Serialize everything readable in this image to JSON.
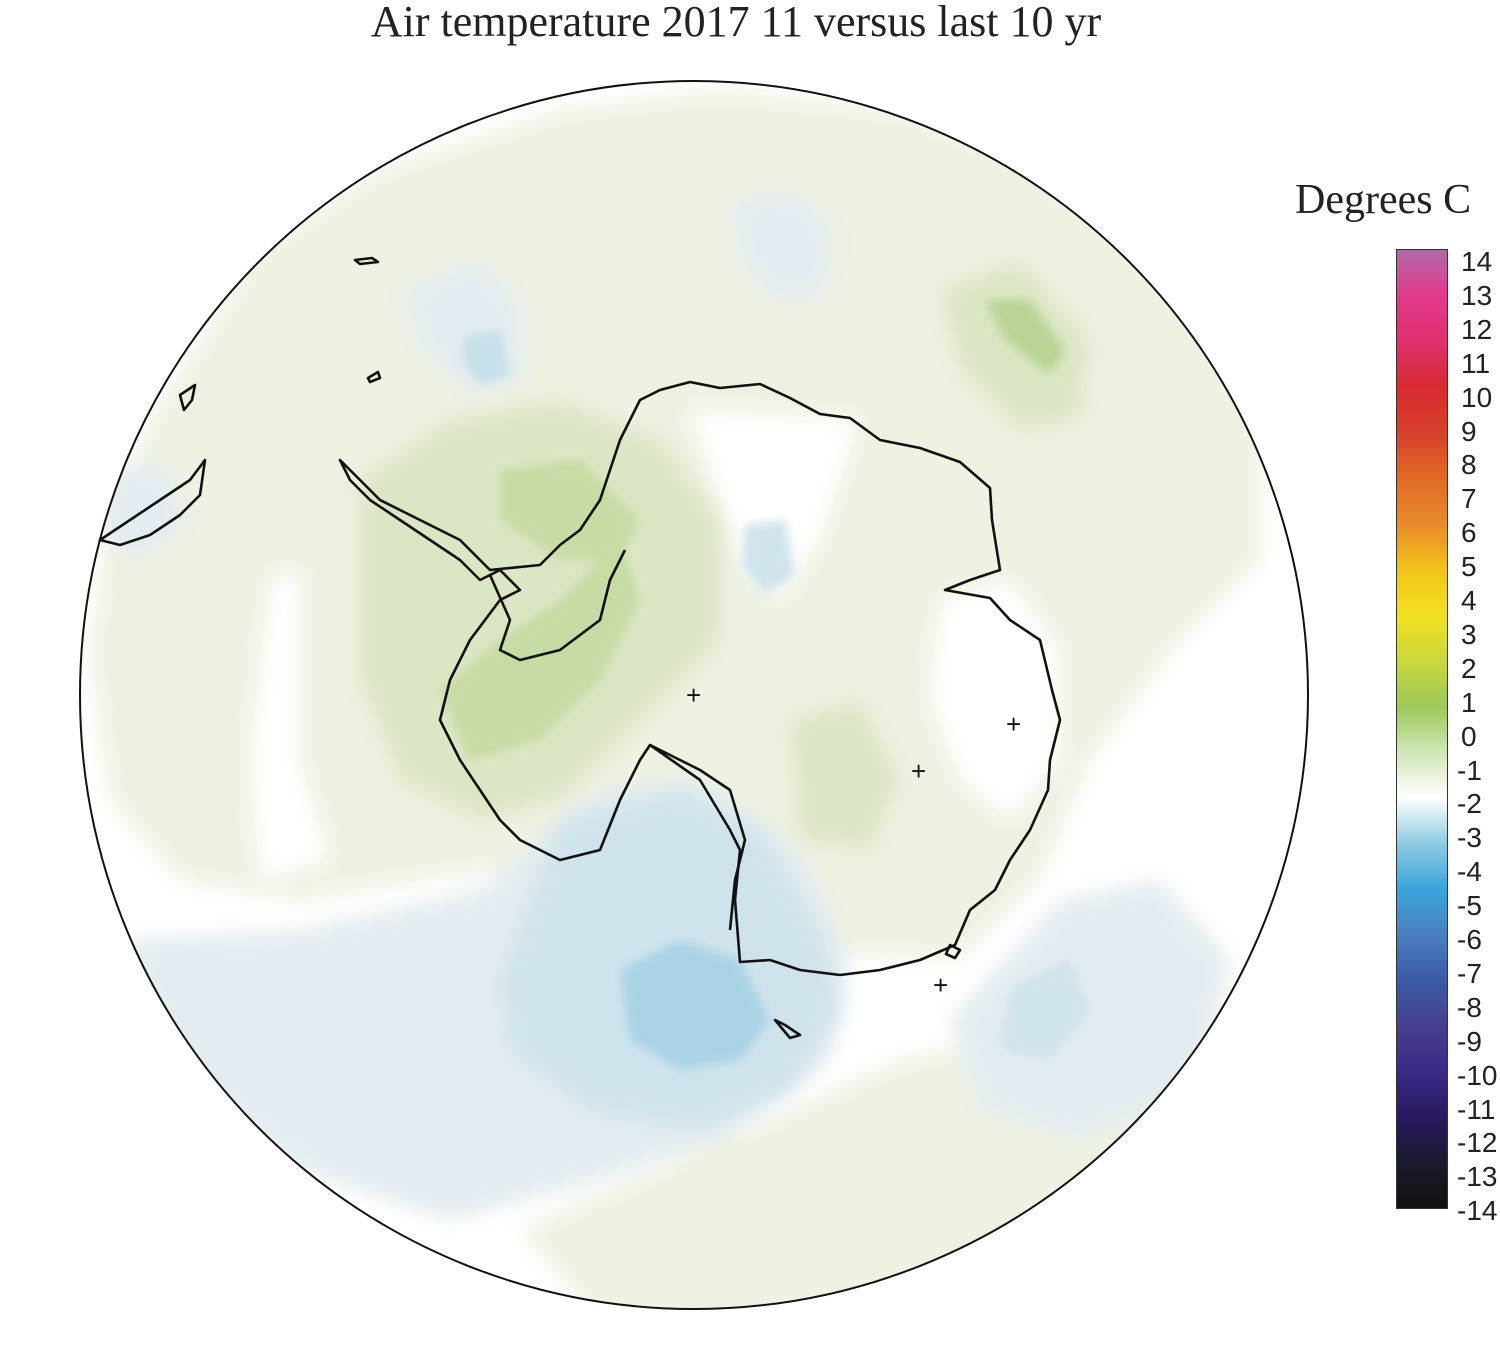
{
  "title": "Air temperature 2017 11 versus last 10 yr",
  "legend": {
    "title": "Degrees C",
    "ticks": [
      "14",
      "13",
      "12",
      "11",
      "10",
      "9",
      "8",
      "7",
      "6",
      "5",
      "4",
      "3",
      "2",
      "1",
      "0",
      "-1",
      "-2",
      "-3",
      "-4",
      "-5",
      "-6",
      "-7",
      "-8",
      "-9",
      "-10",
      "-11",
      "-12",
      "-13",
      "-14"
    ],
    "range": [
      -14,
      14
    ],
    "colors": [
      "#111111",
      "#1a1a2e",
      "#2a1860",
      "#3b2a88",
      "#46408f",
      "#3b5aa6",
      "#4a7fc0",
      "#3aa6dc",
      "#8fcbe2",
      "#ffffff",
      "#cfe6b6",
      "#9cc85a",
      "#c9d83a",
      "#f3e020",
      "#f2c318",
      "#e98a2a",
      "#e06a26",
      "#d7402a",
      "#d82a30",
      "#df2f6e",
      "#e23a8c",
      "#b06aa8"
    ]
  },
  "markers": [
    "+",
    "+",
    "+",
    "+"
  ],
  "colors": {
    "pos_light": "#eef2e2",
    "pos_mid": "#dbe6c4",
    "pos_strong": "#b2d08a",
    "neg_light": "#e3ecf0",
    "neg_mid": "#b9dbe7",
    "neg_strong": "#8fcbe2",
    "coast": "#111111"
  }
}
